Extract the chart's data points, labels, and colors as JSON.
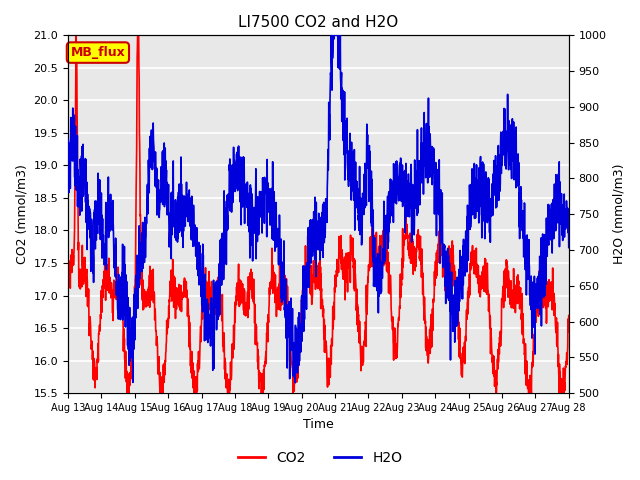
{
  "title": "LI7500 CO2 and H2O",
  "xlabel": "Time",
  "ylabel_left": "CO2 (mmol/m3)",
  "ylabel_right": "H2O (mmol/m3)",
  "ylim_left": [
    15.5,
    21.0
  ],
  "ylim_right": [
    500,
    1000
  ],
  "yticks_left": [
    15.5,
    16.0,
    16.5,
    17.0,
    17.5,
    18.0,
    18.5,
    19.0,
    19.5,
    20.0,
    20.5,
    21.0
  ],
  "yticks_right": [
    500,
    550,
    600,
    650,
    700,
    750,
    800,
    850,
    900,
    950,
    1000
  ],
  "xtick_labels": [
    "Aug 13",
    "Aug 14",
    "Aug 15",
    "Aug 16",
    "Aug 17",
    "Aug 18",
    "Aug 19",
    "Aug 20",
    "Aug 21",
    "Aug 22",
    "Aug 23",
    "Aug 24",
    "Aug 25",
    "Aug 26",
    "Aug 27",
    "Aug 28"
  ],
  "co2_color": "#ff0000",
  "h2o_color": "#0000dd",
  "legend_label_co2": "CO2",
  "legend_label_h2o": "H2O",
  "annotation_text": "MB_flux",
  "annotation_bg": "#ffff00",
  "annotation_border": "#cc0000",
  "bg_color": "#e8e8e8",
  "grid_color": "#ffffff",
  "linewidth": 1.2,
  "n_points": 2000
}
